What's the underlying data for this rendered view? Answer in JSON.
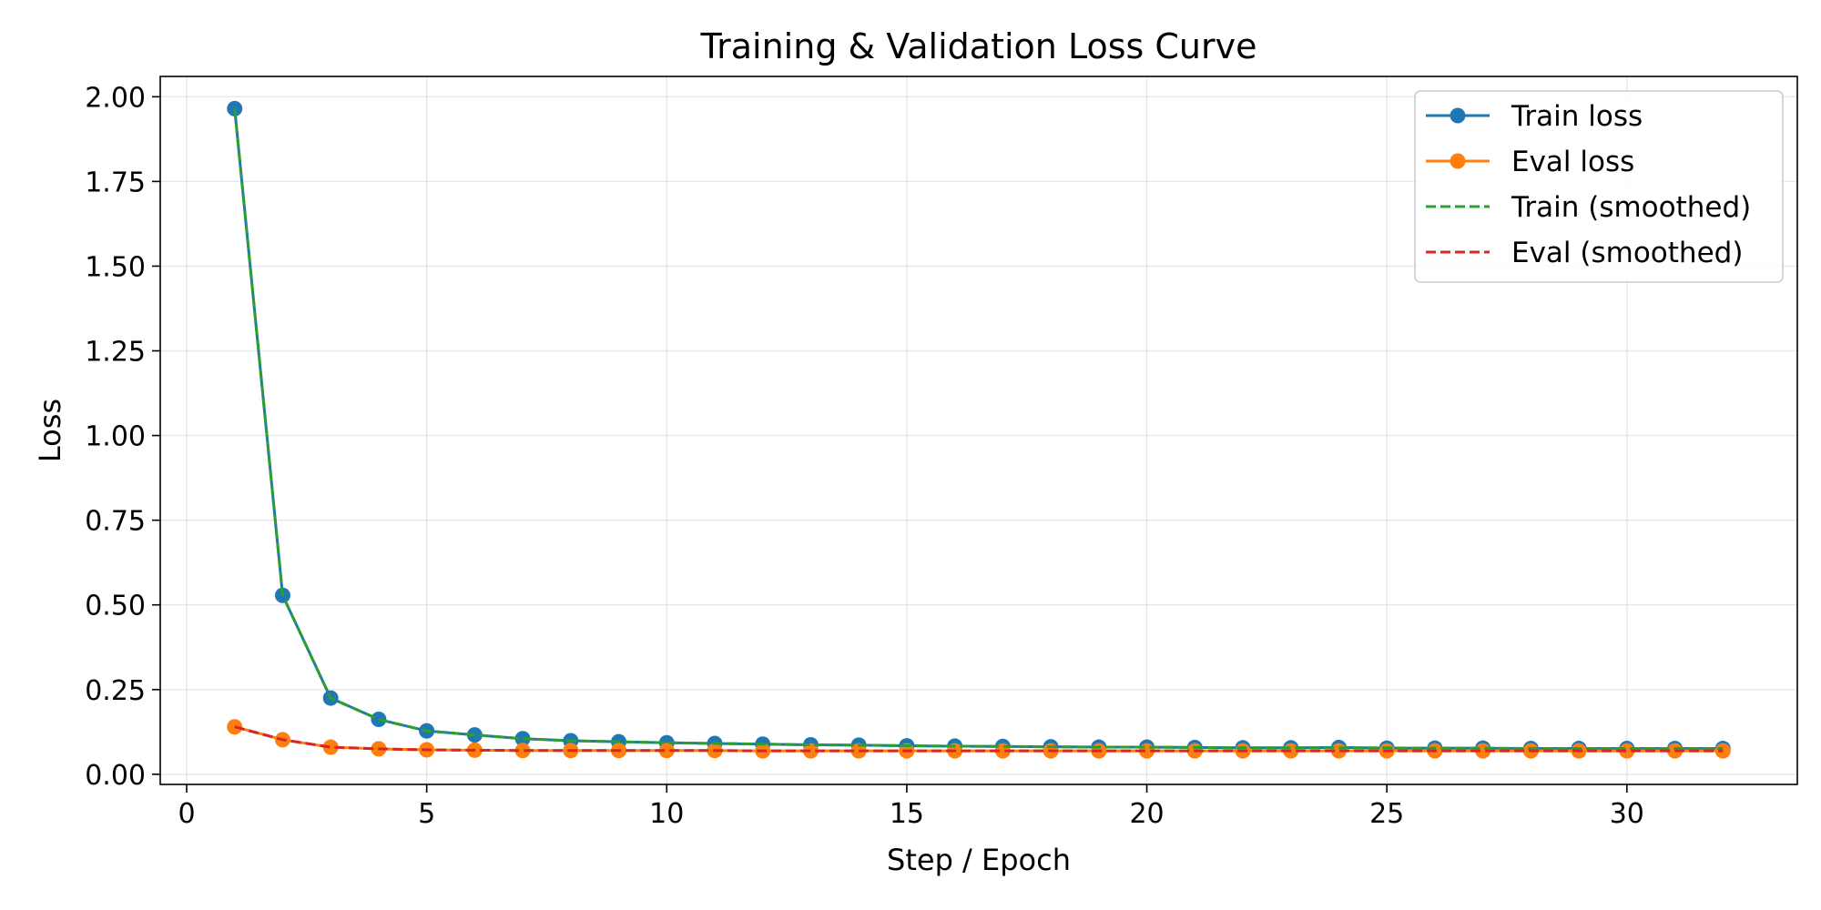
{
  "chart_data": {
    "type": "line",
    "title": "Training & Validation Loss Curve",
    "xlabel": "Step / Epoch",
    "ylabel": "Loss",
    "xlim": [
      -0.55,
      33.55
    ],
    "ylim": [
      -0.03,
      2.06
    ],
    "xticks": [
      0,
      5,
      10,
      15,
      20,
      25,
      30
    ],
    "yticks": [
      0.0,
      0.25,
      0.5,
      0.75,
      1.0,
      1.25,
      1.5,
      1.75,
      2.0
    ],
    "ytick_labels": [
      "0.00",
      "0.25",
      "0.50",
      "0.75",
      "1.00",
      "1.25",
      "1.50",
      "1.75",
      "2.00"
    ],
    "grid": true,
    "legend_position": "top-right",
    "x": [
      1,
      2,
      3,
      4,
      5,
      6,
      7,
      8,
      9,
      10,
      11,
      12,
      13,
      14,
      15,
      16,
      17,
      18,
      19,
      20,
      21,
      22,
      23,
      24,
      25,
      26,
      27,
      28,
      29,
      30,
      31,
      32
    ],
    "series": [
      {
        "name": "Train loss",
        "color": "#1f77b4",
        "style": "solid",
        "marker": true,
        "values": [
          1.965,
          0.528,
          0.225,
          0.162,
          0.128,
          0.116,
          0.105,
          0.099,
          0.096,
          0.093,
          0.091,
          0.089,
          0.087,
          0.086,
          0.084,
          0.083,
          0.082,
          0.081,
          0.08,
          0.08,
          0.079,
          0.078,
          0.078,
          0.079,
          0.077,
          0.077,
          0.077,
          0.076,
          0.076,
          0.076,
          0.076,
          0.076
        ]
      },
      {
        "name": "Eval loss",
        "color": "#ff7f0e",
        "style": "solid",
        "marker": true,
        "values": [
          0.14,
          0.102,
          0.08,
          0.075,
          0.072,
          0.071,
          0.07,
          0.07,
          0.07,
          0.07,
          0.07,
          0.069,
          0.069,
          0.069,
          0.069,
          0.069,
          0.069,
          0.069,
          0.069,
          0.069,
          0.069,
          0.069,
          0.069,
          0.069,
          0.069,
          0.069,
          0.069,
          0.069,
          0.069,
          0.069,
          0.069,
          0.069
        ]
      },
      {
        "name": "Train (smoothed)",
        "color": "#2ca02c",
        "style": "dashed",
        "marker": false,
        "values": [
          1.965,
          0.528,
          0.225,
          0.162,
          0.128,
          0.116,
          0.105,
          0.099,
          0.096,
          0.093,
          0.091,
          0.089,
          0.087,
          0.086,
          0.084,
          0.083,
          0.082,
          0.081,
          0.08,
          0.08,
          0.079,
          0.078,
          0.078,
          0.078,
          0.078,
          0.077,
          0.077,
          0.076,
          0.076,
          0.076,
          0.076,
          0.076
        ]
      },
      {
        "name": "Eval (smoothed)",
        "color": "#d62728",
        "style": "dashed",
        "marker": false,
        "values": [
          0.14,
          0.102,
          0.08,
          0.075,
          0.072,
          0.071,
          0.07,
          0.07,
          0.07,
          0.07,
          0.07,
          0.069,
          0.069,
          0.069,
          0.069,
          0.069,
          0.069,
          0.069,
          0.069,
          0.069,
          0.069,
          0.069,
          0.069,
          0.069,
          0.069,
          0.069,
          0.069,
          0.069,
          0.069,
          0.069,
          0.069,
          0.069
        ]
      }
    ]
  }
}
